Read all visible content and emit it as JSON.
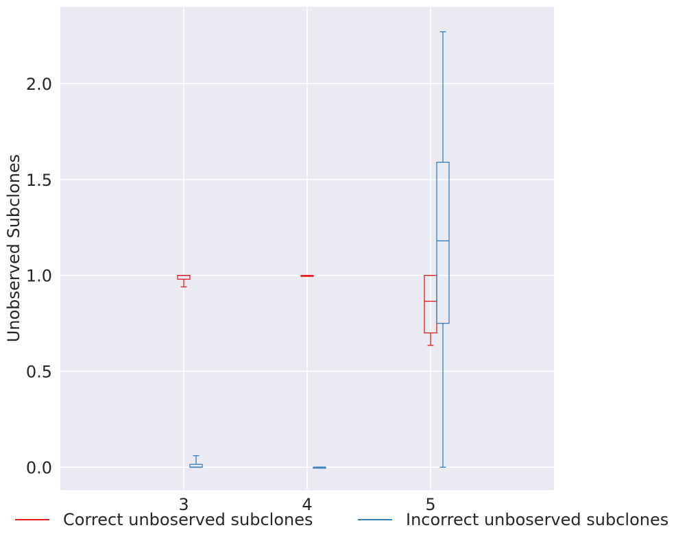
{
  "chart_data": {
    "type": "box",
    "title": "",
    "xlabel": "",
    "ylabel": "Unobserved Subclones",
    "categories": [
      "3",
      "4",
      "5"
    ],
    "yticks": [
      "0.0",
      "0.5",
      "1.0",
      "1.5",
      "2.0"
    ],
    "ylim": [
      -0.12,
      2.4
    ],
    "xlim": [
      2,
      6
    ],
    "grid": true,
    "legend_position": "bottom",
    "series": [
      {
        "name": "Correct unboserved subclones",
        "color": "#e41a1c",
        "boxes": [
          {
            "category": "3",
            "min": 0.94,
            "q1": 0.98,
            "median": 1.0,
            "q3": 1.0,
            "max": 1.0
          },
          {
            "category": "4",
            "min": 1.0,
            "q1": 1.0,
            "median": 1.0,
            "q3": 1.0,
            "max": 1.0
          },
          {
            "category": "5",
            "min": 0.635,
            "q1": 0.7,
            "median": 0.865,
            "q3": 1.0,
            "max": 1.0
          }
        ]
      },
      {
        "name": "Incorrect unboserved subclones",
        "color": "#377eb8",
        "boxes": [
          {
            "category": "3",
            "min": 0.0,
            "q1": 0.0,
            "median": 0.0,
            "q3": 0.015,
            "max": 0.06
          },
          {
            "category": "4",
            "min": 0.0,
            "q1": 0.0,
            "median": 0.0,
            "q3": 0.0,
            "max": 0.0
          },
          {
            "category": "5",
            "min": 0.0,
            "q1": 0.75,
            "median": 1.18,
            "q3": 1.59,
            "max": 2.27
          }
        ]
      }
    ]
  }
}
